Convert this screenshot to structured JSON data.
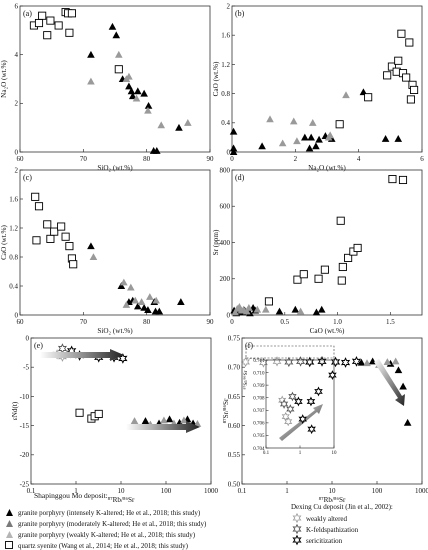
{
  "colors": {
    "black": "#000000",
    "gray": "#9a9a9a",
    "white": "#ffffff",
    "frame": "#333333"
  },
  "chart_data": [
    {
      "panel_id": "a",
      "label": "(a)",
      "type": "scatter",
      "xlabel": "SiO₂ (wt.%)",
      "ylabel": "Na₂O (wt.%)",
      "xlim": [
        60,
        90
      ],
      "ylim": [
        0,
        6
      ],
      "xticks": [
        "60",
        "70",
        "80",
        "90"
      ],
      "yticks": [
        "0",
        "2",
        "4",
        "6"
      ],
      "series": [
        {
          "style": "black-triangle",
          "points": [
            [
              74.6,
              5.15
            ],
            [
              75.2,
              4.8
            ],
            [
              71.2,
              4.0
            ],
            [
              76.2,
              3.0
            ],
            [
              77.6,
              2.5
            ],
            [
              77.2,
              2.7
            ],
            [
              77.8,
              2.3
            ],
            [
              78.6,
              2.5
            ],
            [
              79.6,
              2.4
            ],
            [
              80.3,
              1.9
            ],
            [
              81.1,
              0.05
            ],
            [
              81.6,
              0.05
            ],
            [
              85.1,
              1.0
            ]
          ]
        },
        {
          "style": "gray-triangle",
          "points": [
            [
              75.6,
              4.0
            ],
            [
              71.2,
              2.9
            ],
            [
              76.8,
              3.0
            ],
            [
              77.2,
              3.1
            ],
            [
              78.4,
              2.2
            ],
            [
              80.2,
              1.7
            ],
            [
              82.3,
              1.1
            ],
            [
              86.5,
              1.2
            ]
          ]
        },
        {
          "style": "open-square",
          "points": [
            [
              62.2,
              5.2
            ],
            [
              63.0,
              5.3
            ],
            [
              63.5,
              5.6
            ],
            [
              64.8,
              5.4
            ],
            [
              67.2,
              5.75
            ],
            [
              67.6,
              5.7
            ],
            [
              68.2,
              5.7
            ],
            [
              66.1,
              5.2
            ],
            [
              64.3,
              4.8
            ],
            [
              67.8,
              4.9
            ],
            [
              75.6,
              3.4
            ]
          ]
        }
      ]
    },
    {
      "panel_id": "b",
      "label": "(b)",
      "type": "scatter",
      "xlabel": "Na₂O (wt.%)",
      "ylabel": "CaO (wt.%)",
      "xlim": [
        0,
        6
      ],
      "ylim": [
        0,
        2
      ],
      "xticks": [
        "0",
        "2",
        "4",
        "6"
      ],
      "yticks": [
        "0",
        "0.4",
        "0.8",
        "1.2",
        "1.6",
        "2"
      ],
      "series": [
        {
          "style": "black-triangle",
          "points": [
            [
              0.05,
              0.28
            ],
            [
              0.05,
              0.05
            ],
            [
              0.05,
              0.0
            ],
            [
              0.95,
              0.08
            ],
            [
              2.3,
              0.2
            ],
            [
              2.45,
              0.05
            ],
            [
              2.5,
              0.2
            ],
            [
              2.65,
              0.08
            ],
            [
              2.75,
              0.17
            ],
            [
              2.95,
              0.22
            ],
            [
              3.15,
              0.18
            ],
            [
              4.15,
              0.82
            ],
            [
              4.85,
              0.18
            ],
            [
              5.25,
              0.18
            ]
          ]
        },
        {
          "style": "gray-triangle",
          "points": [
            [
              1.2,
              0.45
            ],
            [
              1.6,
              0.12
            ],
            [
              1.95,
              0.42
            ],
            [
              2.05,
              0.15
            ],
            [
              2.55,
              0.4
            ],
            [
              3.05,
              0.2
            ],
            [
              3.1,
              0.23
            ],
            [
              3.6,
              0.78
            ]
          ]
        },
        {
          "style": "open-square",
          "points": [
            [
              3.4,
              0.38
            ],
            [
              4.3,
              0.75
            ],
            [
              4.9,
              1.05
            ],
            [
              5.05,
              1.17
            ],
            [
              5.2,
              1.1
            ],
            [
              5.25,
              1.25
            ],
            [
              5.35,
              1.62
            ],
            [
              5.4,
              1.08
            ],
            [
              5.5,
              1.02
            ],
            [
              5.6,
              1.5
            ],
            [
              5.65,
              0.72
            ],
            [
              5.7,
              0.92
            ],
            [
              5.75,
              0.85
            ]
          ]
        }
      ]
    },
    {
      "panel_id": "c",
      "label": "(c)",
      "type": "scatter",
      "xlabel": "SiO₂ (wt.%)",
      "ylabel": "CaO (wt.%)",
      "xlim": [
        60,
        90
      ],
      "ylim": [
        0,
        2
      ],
      "xticks": [
        "60",
        "70",
        "80",
        "90"
      ],
      "yticks": [
        "0",
        "0.4",
        "0.8",
        "1.2",
        "1.6",
        "2"
      ],
      "series": [
        {
          "style": "black-triangle",
          "points": [
            [
              71.2,
              0.95
            ],
            [
              76.0,
              0.4
            ],
            [
              77.2,
              0.18
            ],
            [
              77.8,
              0.2
            ],
            [
              78.6,
              0.12
            ],
            [
              79.6,
              0.1
            ],
            [
              80.2,
              0.07
            ],
            [
              81.2,
              0.18
            ],
            [
              81.4,
              0.05
            ],
            [
              82.0,
              0.05
            ],
            [
              85.4,
              0.18
            ]
          ]
        },
        {
          "style": "gray-triangle",
          "points": [
            [
              71.6,
              0.8
            ],
            [
              76.4,
              0.45
            ],
            [
              77.5,
              0.38
            ],
            [
              78.2,
              0.2
            ],
            [
              79.2,
              0.18
            ],
            [
              80.5,
              0.25
            ],
            [
              81.5,
              0.2
            ],
            [
              76.8,
              0.14
            ]
          ]
        },
        {
          "style": "open-square",
          "points": [
            [
              62.4,
              1.63
            ],
            [
              62.6,
              1.03
            ],
            [
              63.0,
              1.5
            ],
            [
              64.3,
              1.25
            ],
            [
              64.8,
              1.05
            ],
            [
              65.4,
              1.15
            ],
            [
              66.5,
              1.22
            ],
            [
              67.2,
              1.08
            ],
            [
              67.8,
              0.95
            ],
            [
              68.2,
              0.78
            ],
            [
              68.4,
              0.7
            ]
          ]
        }
      ]
    },
    {
      "panel_id": "d",
      "label": "(d)",
      "type": "scatter",
      "xlabel": "CaO (wt.%)",
      "ylabel": "Sr (ppm)",
      "xlim": [
        0,
        1.8
      ],
      "ylim": [
        0,
        800
      ],
      "xticks": [
        "0",
        "0.5",
        "1.0",
        "1.5"
      ],
      "yticks": [
        "0",
        "200",
        "400",
        "600",
        "800"
      ],
      "series": [
        {
          "style": "black-triangle",
          "points": [
            [
              0.02,
              25
            ],
            [
              0.04,
              10
            ],
            [
              0.06,
              20
            ],
            [
              0.08,
              30
            ],
            [
              0.1,
              15
            ],
            [
              0.12,
              25
            ],
            [
              0.15,
              20
            ],
            [
              0.17,
              10
            ],
            [
              0.2,
              40
            ],
            [
              0.22,
              25
            ],
            [
              0.45,
              20
            ],
            [
              0.6,
              30
            ],
            [
              0.8,
              15
            ],
            [
              0.85,
              30
            ]
          ]
        },
        {
          "style": "gray-triangle",
          "points": [
            [
              0.03,
              15
            ],
            [
              0.05,
              35
            ],
            [
              0.07,
              45
            ],
            [
              0.09,
              25
            ],
            [
              0.11,
              30
            ],
            [
              0.14,
              20
            ],
            [
              0.16,
              40
            ],
            [
              0.24,
              30
            ],
            [
              0.32,
              30
            ],
            [
              0.65,
              20
            ]
          ]
        },
        {
          "style": "open-square",
          "points": [
            [
              0.35,
              75
            ],
            [
              0.62,
              195
            ],
            [
              0.68,
              225
            ],
            [
              0.82,
              200
            ],
            [
              0.88,
              250
            ],
            [
              1.03,
              520
            ],
            [
              1.05,
              265
            ],
            [
              1.1,
              315
            ],
            [
              1.15,
              350
            ],
            [
              1.19,
              370
            ],
            [
              1.52,
              750
            ],
            [
              1.62,
              745
            ],
            [
              1.04,
              190
            ]
          ]
        }
      ]
    },
    {
      "panel_id": "e",
      "label": "(e)",
      "type": "scatter",
      "xscale": "log",
      "xlabel": "⁸⁷Rb/⁸⁶Sr",
      "ylabel": "εNd(t)",
      "xlim": [
        0.1,
        1000
      ],
      "ylim": [
        -25,
        0
      ],
      "xticks": [
        "0.1",
        "1",
        "10",
        "100",
        "1000"
      ],
      "yticks": [
        "0",
        "-5",
        "-10",
        "-15",
        "-20",
        "-25"
      ],
      "series": [
        {
          "style": "black-triangle",
          "points": [
            [
              35,
              -14.2
            ],
            [
              70,
              -14.6
            ],
            [
              120,
              -13.9
            ],
            [
              200,
              -14.5
            ],
            [
              300,
              -13.9
            ],
            [
              400,
              -14.6
            ]
          ]
        },
        {
          "style": "gray-triangle",
          "points": [
            [
              20,
              -14.2
            ],
            [
              45,
              -14.8
            ],
            [
              90,
              -14.1
            ],
            [
              150,
              -14.6
            ],
            [
              250,
              -14.1
            ],
            [
              500,
              -14.7
            ]
          ]
        },
        {
          "style": "open-square",
          "points": [
            [
              1.2,
              -12.8
            ],
            [
              2.2,
              -13.8
            ],
            [
              2.6,
              -13.4
            ],
            [
              3.2,
              -13.0
            ]
          ]
        },
        {
          "style": "weakly-altered-star",
          "points": [
            [
              0.38,
              -2.8
            ],
            [
              0.5,
              -3.2
            ]
          ]
        },
        {
          "style": "k-feldspathization-star",
          "points": [
            [
              0.5,
              -1.8
            ],
            [
              0.75,
              -2.6
            ]
          ]
        },
        {
          "style": "sericitization-star",
          "points": [
            [
              0.8,
              -2.2
            ],
            [
              1.2,
              -3.0
            ],
            [
              3.2,
              -3.3
            ],
            [
              7.0,
              -3.3
            ],
            [
              11,
              -3.5
            ]
          ]
        }
      ]
    },
    {
      "panel_id": "f",
      "label": "(f)",
      "type": "scatter",
      "xscale": "log",
      "xlabel": "⁸⁷Rb/⁸⁶Sr",
      "ylabel": "⁸⁷Sr/⁸⁶Sr",
      "xlim": [
        0.1,
        1000
      ],
      "ylim": [
        0.5,
        0.75
      ],
      "xticks": [
        "0.1",
        "1",
        "10",
        "100",
        "1000"
      ],
      "yticks": [
        "0.50",
        "0.55",
        "0.60",
        "0.65",
        "0.70",
        "0.75"
      ],
      "series": [
        {
          "style": "black-triangle",
          "points": [
            [
              45,
              0.708
            ],
            [
              80,
              0.71
            ],
            [
              200,
              0.706
            ],
            [
              300,
              0.695
            ],
            [
              380,
              0.667
            ],
            [
              480,
              0.605
            ]
          ]
        },
        {
          "style": "gray-triangle",
          "points": [
            [
              60,
              0.707
            ],
            [
              110,
              0.704
            ],
            [
              170,
              0.709
            ],
            [
              260,
              0.71
            ]
          ]
        },
        {
          "style": "weakly-altered-star",
          "points": [
            [
              0.12,
              0.709
            ],
            [
              0.3,
              0.708
            ],
            [
              0.6,
              0.71
            ]
          ]
        },
        {
          "style": "k-feldspathization-star",
          "points": [
            [
              1.1,
              0.709
            ],
            [
              2.0,
              0.71
            ]
          ]
        },
        {
          "style": "sericitization-star",
          "points": [
            [
              3.2,
              0.709
            ],
            [
              6.0,
              0.71
            ],
            [
              12,
              0.709
            ],
            [
              20,
              0.708
            ],
            [
              35,
              0.71
            ]
          ]
        }
      ],
      "inset": {
        "xlim": [
          0.1,
          10
        ],
        "ylim": [
          0.704,
          0.711
        ],
        "xticks": [
          "0.1",
          "1",
          "10"
        ],
        "yticks": [
          "0.704",
          "0.705",
          "0.706",
          "0.707",
          "0.708",
          "0.709",
          "0.710",
          "0.711"
        ],
        "ylabel": "⁸⁷Sr/⁸⁶Sr",
        "series": [
          {
            "style": "weakly-altered-star",
            "points": [
              [
                0.3,
                0.7078
              ],
              [
                0.38,
                0.7065
              ],
              [
                0.45,
                0.7061
              ]
            ]
          },
          {
            "style": "k-feldspathization-star",
            "points": [
              [
                0.52,
                0.7071
              ],
              [
                0.6,
                0.7081
              ],
              [
                0.34,
                0.7075
              ]
            ]
          },
          {
            "style": "sericitization-star",
            "points": [
              [
                0.9,
                0.7077
              ],
              [
                1.2,
                0.7063
              ],
              [
                2.1,
                0.7077
              ],
              [
                3.5,
                0.7085
              ],
              [
                2.2,
                0.7055
              ],
              [
                9.0,
                0.7098
              ]
            ]
          }
        ]
      }
    }
  ],
  "legend": {
    "left_title": "Shapinggou Mo deposit:",
    "left_items": [
      {
        "marker": "black-triangle",
        "text": "granite porphyry (intensely K-altered; He et al., 2018; this study)"
      },
      {
        "marker": "gray-triangle",
        "text": "granite porphyry (moderately K-altered; He et al., 2018; this study)"
      },
      {
        "marker": "light-triangle",
        "text": "granite porphyry (weakly K-altered; He et al., 2018; this study)"
      },
      {
        "marker": "open-square",
        "text": "quartz syenite (Wang et al., 2014; He et al., 2018; this study)"
      }
    ],
    "right_title": "Dexing Cu deposit (Jin et al., 2002):",
    "right_items": [
      {
        "marker": "weakly-altered-star",
        "text": "weakly altered"
      },
      {
        "marker": "k-feldspathization-star",
        "text": "K-feldspathization"
      },
      {
        "marker": "sericitization-star",
        "text": "sericitization"
      }
    ]
  }
}
